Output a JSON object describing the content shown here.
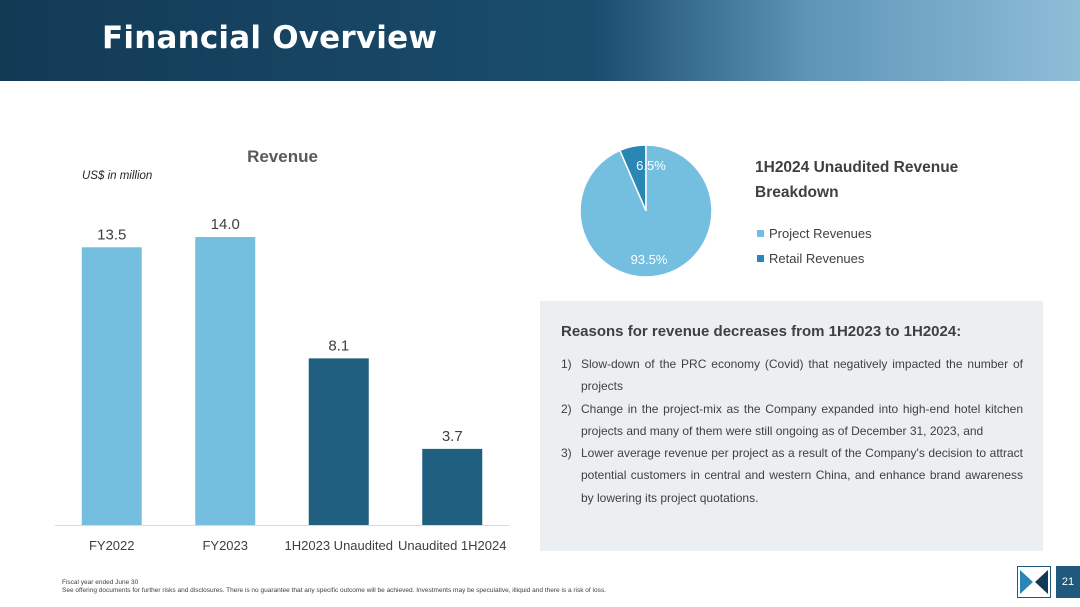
{
  "header": {
    "title": "Financial Overview"
  },
  "colors": {
    "light_bar": "#74bfe0",
    "dark_bar": "#1f5f80",
    "pie_project": "#74bfe0",
    "pie_retail": "#2a86b5"
  },
  "chart_data": [
    {
      "type": "bar",
      "title": "Revenue",
      "unit_label": "US$ in million",
      "categories": [
        "FY2022",
        "FY2023",
        "1H2023 Unaudited",
        "Unaudited 1H2024"
      ],
      "values": [
        13.5,
        14.0,
        8.1,
        3.7
      ],
      "value_labels": [
        "13.5",
        "14.0",
        "8.1",
        "3.7"
      ],
      "bar_colors": [
        "#74bfe0",
        "#74bfe0",
        "#1f5f80",
        "#1f5f80"
      ],
      "ylim": [
        0,
        14.0
      ],
      "grid": false,
      "xlabel": "",
      "ylabel": ""
    },
    {
      "type": "pie",
      "title": "1H2024 Unaudited Revenue Breakdown",
      "slices": [
        {
          "name": "Project Revenues",
          "value": 93.5,
          "label": "93.5%",
          "color": "#74bfe0"
        },
        {
          "name": "Retail Revenues",
          "value": 6.5,
          "label": "6.5%",
          "color": "#2a86b5"
        }
      ],
      "legend_position": "right"
    }
  ],
  "reasons": {
    "title": "Reasons for revenue decreases from 1H2023 to 1H2024:",
    "items": [
      {
        "num": "1)",
        "text": "Slow-down of the PRC economy (Covid) that negatively impacted the number of projects"
      },
      {
        "num": "2)",
        "text": "Change in the project-mix as the Company expanded into high-end hotel kitchen projects and many of them were still ongoing as of December 31, 2023, and"
      },
      {
        "num": "3)",
        "text": "Lower average revenue per project as a result of the Company's decision to attract potential customers in central and western China, and enhance brand awareness by lowering its project quotations."
      }
    ]
  },
  "footer": {
    "line1": "Fiscal year ended June 30",
    "line2": "See offering documents for further risks and disclosures. There is no guarantee that any specific outcome will be achieved. Investments may be speculative, illiquid and there is a risk of loss."
  },
  "page": {
    "number": "21"
  }
}
